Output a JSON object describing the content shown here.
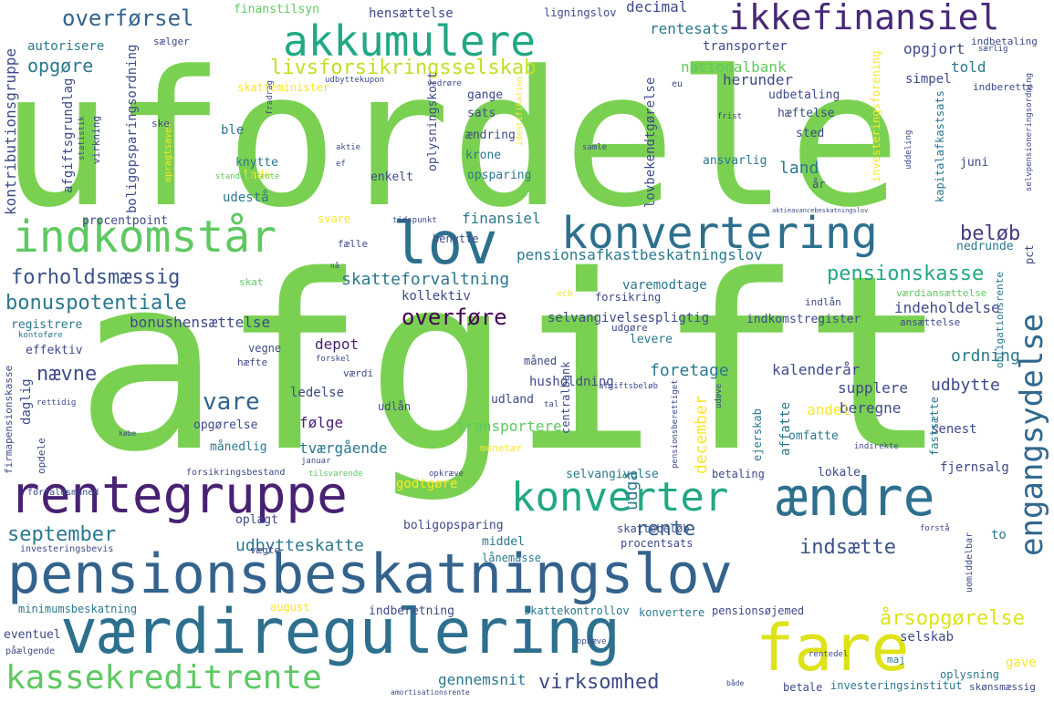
{
  "words": [
    {
      "text": "ufordele",
      "color": "#7ad151"
    },
    {
      "text": "afgift",
      "color": "#7ad151"
    },
    {
      "text": "pensionsbeskatningslov",
      "color": "#33638d"
    },
    {
      "text": "værdiregulering",
      "color": "#2d708e"
    },
    {
      "text": "rentegruppe",
      "color": "#482173"
    },
    {
      "text": "konverter",
      "color": "#22a884"
    },
    {
      "text": "ændre",
      "color": "#2d708e"
    },
    {
      "text": "fare",
      "color": "#dde318"
    },
    {
      "text": "indkomstår",
      "color": "#5ec962"
    },
    {
      "text": "lov",
      "color": "#2d708e"
    },
    {
      "text": "konvertering",
      "color": "#2d708e"
    },
    {
      "text": "akkumulere",
      "color": "#22a884"
    },
    {
      "text": "ikkefinansiel",
      "color": "#482878"
    },
    {
      "text": "kassekreditrente",
      "color": "#5ec962"
    },
    {
      "text": "livsforsikringsselskab",
      "color": "#c2df23"
    },
    {
      "text": "engangsydelse",
      "color": "#31688e"
    },
    {
      "text": "overførsel",
      "color": "#33638d"
    },
    {
      "text": "forholdsmæssig",
      "color": "#3b528b"
    },
    {
      "text": "bonuspotentiale",
      "color": "#2a788e"
    },
    {
      "text": "pensionskasse",
      "color": "#22a884"
    },
    {
      "text": "overføre",
      "color": "#440154"
    },
    {
      "text": "beløb",
      "color": "#443983"
    },
    {
      "text": "vare",
      "color": "#33638d"
    },
    {
      "text": "nævne",
      "color": "#3e4a89"
    },
    {
      "text": "september",
      "color": "#2a788e"
    },
    {
      "text": "rente",
      "color": "#33638d"
    },
    {
      "text": "indsætte",
      "color": "#3b528b"
    },
    {
      "text": "virksomhed",
      "color": "#3e4a89"
    },
    {
      "text": "årsopgørelse",
      "color": "#dde318"
    },
    {
      "text": "opgøre",
      "color": "#2a788e"
    },
    {
      "text": "udbytteskatte",
      "color": "#2a788e"
    },
    {
      "text": "gennemsnit",
      "color": "#2a788e"
    },
    {
      "text": "foretage",
      "color": "#2a788e"
    },
    {
      "text": "ordning",
      "color": "#2a788e"
    },
    {
      "text": "udbytte",
      "color": "#3e4a89"
    },
    {
      "text": "depot",
      "color": "#482173"
    },
    {
      "text": "udgå",
      "color": "#2a788e"
    },
    {
      "text": "december",
      "color": "#fde725"
    },
    {
      "text": "hensættelse",
      "color": "#3e4a89"
    },
    {
      "text": "decimal",
      "color": "#3e4a89"
    },
    {
      "text": "rentesats",
      "color": "#2a788e"
    },
    {
      "text": "transporter",
      "color": "#3e4a89"
    },
    {
      "text": "opgjort",
      "color": "#3e4a89"
    },
    {
      "text": "nationalbank",
      "color": "#5ec962"
    },
    {
      "text": "told",
      "color": "#2a788e"
    },
    {
      "text": "herunder",
      "color": "#3e4a89"
    },
    {
      "text": "simpel",
      "color": "#3e4a89"
    },
    {
      "text": "kalenderår",
      "color": "#3e4a89"
    },
    {
      "text": "supplere",
      "color": "#3e4a89"
    },
    {
      "text": "beregne",
      "color": "#3e4a89"
    },
    {
      "text": "senest",
      "color": "#3e4a89"
    },
    {
      "text": "andel",
      "color": "#fde725"
    },
    {
      "text": "ledelse",
      "color": "#3e4a89"
    },
    {
      "text": "følge",
      "color": "#482173"
    },
    {
      "text": "tværgående",
      "color": "#2a788e"
    },
    {
      "text": "transportere",
      "color": "#5ec962"
    },
    {
      "text": "husholdning",
      "color": "#3e4a89"
    },
    {
      "text": "land",
      "color": "#2a788e"
    },
    {
      "text": "finansiel",
      "color": "#2a788e"
    },
    {
      "text": "pensionsafkastbeskatningslov",
      "color": "#2a788e"
    },
    {
      "text": "skatteforvaltning",
      "color": "#2a788e"
    },
    {
      "text": "varemodtage",
      "color": "#2a788e"
    },
    {
      "text": "kollektiv",
      "color": "#3e4a89"
    },
    {
      "text": "selvangivelsespligtig",
      "color": "#3e4a89"
    },
    {
      "text": "indeholdelse",
      "color": "#3e4a89"
    },
    {
      "text": "indkomstregister",
      "color": "#3e4a89"
    },
    {
      "text": "bonushensættelse",
      "color": "#3e4a89"
    },
    {
      "text": "lovbekendtgørelse",
      "color": "#3e4a89"
    },
    {
      "text": "kontributionsgruppe",
      "color": "#3e4a89"
    },
    {
      "text": "boligopsparingsordning",
      "color": "#3e4a89"
    },
    {
      "text": "afgiftsgrundlag",
      "color": "#3e4a89"
    },
    {
      "text": "autorisere",
      "color": "#2a788e"
    },
    {
      "text": "sælger",
      "color": "#3e4a89"
    },
    {
      "text": "ble",
      "color": "#2a788e"
    },
    {
      "text": "knytte",
      "color": "#2a788e"
    },
    {
      "text": "lade",
      "color": "#fde725"
    },
    {
      "text": "udestå",
      "color": "#2a788e"
    },
    {
      "text": "procentpoint",
      "color": "#3e4a89"
    },
    {
      "text": "enkelt",
      "color": "#3e4a89"
    },
    {
      "text": "opsparing",
      "color": "#2a788e"
    },
    {
      "text": "krone",
      "color": "#2a788e"
    },
    {
      "text": "ændring",
      "color": "#3e4a89"
    },
    {
      "text": "oplysningskort",
      "color": "#3e4a89"
    },
    {
      "text": "sats",
      "color": "#3e4a89"
    },
    {
      "text": "gange",
      "color": "#3e4a89"
    },
    {
      "text": "udbetaling",
      "color": "#3e4a89"
    },
    {
      "text": "hæftelse",
      "color": "#3e4a89"
    },
    {
      "text": "sted",
      "color": "#3e4a89"
    },
    {
      "text": "ansvarlig",
      "color": "#2a788e"
    },
    {
      "text": "juni",
      "color": "#3e4a89"
    },
    {
      "text": "nedrunde",
      "color": "#2a788e"
    },
    {
      "text": "benytte",
      "color": "#3e4a89"
    },
    {
      "text": "fælle",
      "color": "#3e4a89"
    },
    {
      "text": "effektiv",
      "color": "#3e4a89"
    },
    {
      "text": "vegne",
      "color": "#3e4a89"
    },
    {
      "text": "måned",
      "color": "#3e4a89"
    },
    {
      "text": "levere",
      "color": "#2a788e"
    },
    {
      "text": "udgøre",
      "color": "#3e4a89"
    },
    {
      "text": "forsikring",
      "color": "#3e4a89"
    },
    {
      "text": "udland",
      "color": "#3e4a89"
    },
    {
      "text": "udlån",
      "color": "#3e4a89"
    },
    {
      "text": "daglig",
      "color": "#3e4a89"
    },
    {
      "text": "opgørelse",
      "color": "#3e4a89"
    },
    {
      "text": "månedlig",
      "color": "#2a788e"
    },
    {
      "text": "fastsætte",
      "color": "#2a788e"
    },
    {
      "text": "omfatte",
      "color": "#2a788e"
    },
    {
      "text": "affatte",
      "color": "#2a788e"
    },
    {
      "text": "ejerskab",
      "color": "#2a788e"
    },
    {
      "text": "centralbank",
      "color": "#3e4a89"
    },
    {
      "text": "betaling",
      "color": "#3e4a89"
    },
    {
      "text": "lokale",
      "color": "#3e4a89"
    },
    {
      "text": "fjernsalg",
      "color": "#3e4a89"
    },
    {
      "text": "godtgøre",
      "color": "#fde725"
    },
    {
      "text": "selvangivelse",
      "color": "#2a788e"
    },
    {
      "text": "oplagt",
      "color": "#3e4a89"
    },
    {
      "text": "boligopsparing",
      "color": "#3e4a89"
    },
    {
      "text": "skattebeløb",
      "color": "#3e4a89"
    },
    {
      "text": "procentsats",
      "color": "#3e4a89"
    },
    {
      "text": "middel",
      "color": "#2a788e"
    },
    {
      "text": "lånemasse",
      "color": "#2a788e"
    },
    {
      "text": "vægte",
      "color": "#3e4a89"
    },
    {
      "text": "to",
      "color": "#2a788e"
    },
    {
      "text": "selskab",
      "color": "#3e4a89"
    },
    {
      "text": "gave",
      "color": "#fde725"
    },
    {
      "text": "oplysning",
      "color": "#2a788e"
    },
    {
      "text": "skønsmæssig",
      "color": "#3e4a89"
    },
    {
      "text": "investeringsinstitut",
      "color": "#2a788e"
    },
    {
      "text": "betale",
      "color": "#3e4a89"
    },
    {
      "text": "maj",
      "color": "#2a788e"
    },
    {
      "text": "pensionsøjemed",
      "color": "#3e4a89"
    },
    {
      "text": "konvertere",
      "color": "#2a788e"
    },
    {
      "text": "skattekontrollov",
      "color": "#2a788e"
    },
    {
      "text": "indberetning",
      "color": "#3e4a89"
    },
    {
      "text": "august",
      "color": "#fde725"
    },
    {
      "text": "minimumsbeskatning",
      "color": "#2a788e"
    },
    {
      "text": "eventuel",
      "color": "#3e4a89"
    },
    {
      "text": "påælgende",
      "color": "#3e4a89"
    },
    {
      "text": "investeringsbevis",
      "color": "#3e4a89"
    },
    {
      "text": "forfaldsmåned",
      "color": "#3e4a89"
    },
    {
      "text": "forsikringsbestand",
      "color": "#3e4a89"
    },
    {
      "text": "opdele",
      "color": "#3e4a89"
    },
    {
      "text": "firmapensionskasse",
      "color": "#3e4a89"
    },
    {
      "text": "registrere",
      "color": "#2a788e"
    },
    {
      "text": "kontoføre",
      "color": "#2a788e"
    },
    {
      "text": "finanstilsyn",
      "color": "#5ec962"
    },
    {
      "text": "ligningslov",
      "color": "#3e4a89"
    },
    {
      "text": "indbetaling",
      "color": "#3e4a89"
    },
    {
      "text": "indberette",
      "color": "#3e4a89"
    },
    {
      "text": "skatteminister",
      "color": "#fde725"
    },
    {
      "text": "udbyttekupon",
      "color": "#3e4a89"
    },
    {
      "text": "identifikation",
      "color": "#fde725"
    },
    {
      "text": "investeringsforening",
      "color": "#fde725"
    },
    {
      "text": "kapitalafkastsats",
      "color": "#2a788e"
    },
    {
      "text": "obligationsrente",
      "color": "#2a788e"
    },
    {
      "text": "selvpensioneringsordning",
      "color": "#3e4a89"
    },
    {
      "text": "statistik",
      "color": "#3e4a89"
    },
    {
      "text": "virkning",
      "color": "#3e4a89"
    },
    {
      "text": "opragtsaver",
      "color": "#fde725"
    },
    {
      "text": "standardrente",
      "color": "#5ec962"
    },
    {
      "text": "frist",
      "color": "#3e4a89"
    },
    {
      "text": "samle",
      "color": "#3e4a89"
    },
    {
      "text": "aktie",
      "color": "#3e4a89"
    },
    {
      "text": "år",
      "color": "#3e4a89"
    },
    {
      "text": "skat",
      "color": "#5ec962"
    },
    {
      "text": "nå",
      "color": "#3e4a89"
    },
    {
      "text": "svare",
      "color": "#fde725"
    },
    {
      "text": "tidspunkt",
      "color": "#3e4a89"
    },
    {
      "text": "ecb",
      "color": "#fde725"
    },
    {
      "text": "pct",
      "color": "#3e4a89"
    },
    {
      "text": "værdiansættelse",
      "color": "#5ec962"
    },
    {
      "text": "ansættelse",
      "color": "#3e4a89"
    },
    {
      "text": "indlån",
      "color": "#3e4a89"
    },
    {
      "text": "hæfte",
      "color": "#3e4a89"
    },
    {
      "text": "værdi",
      "color": "#3e4a89"
    },
    {
      "text": "forskel",
      "color": "#3e4a89"
    },
    {
      "text": "afgiftsbeløb",
      "color": "#3e4a89"
    },
    {
      "text": "tal",
      "color": "#3e4a89"
    },
    {
      "text": "monetær",
      "color": "#fde725"
    },
    {
      "text": "pensionsberettiget",
      "color": "#3e4a89"
    },
    {
      "text": "udøve",
      "color": "#3e4a89"
    },
    {
      "text": "indirekte",
      "color": "#3e4a89"
    },
    {
      "text": "rettidig",
      "color": "#3e4a89"
    },
    {
      "text": "købe",
      "color": "#3e4a89"
    },
    {
      "text": "januar",
      "color": "#3e4a89"
    },
    {
      "text": "tilsvarende",
      "color": "#5ec962"
    },
    {
      "text": "opkræve",
      "color": "#3e4a89"
    },
    {
      "text": "forstå",
      "color": "#3e4a89"
    },
    {
      "text": "uomiddelbar",
      "color": "#3e4a89"
    },
    {
      "text": "rentedel",
      "color": "#3e4a89"
    },
    {
      "text": "ophæve",
      "color": "#3e4a89"
    },
    {
      "text": "både",
      "color": "#3e4a89"
    },
    {
      "text": "amortisationsrente",
      "color": "#3e4a89"
    },
    {
      "text": "uddeling",
      "color": "#3e4a89"
    },
    {
      "text": "vedrøre",
      "color": "#3e4a89"
    },
    {
      "text": "særlig",
      "color": "#3e4a89"
    },
    {
      "text": "eu",
      "color": "#3e4a89"
    },
    {
      "text": "ske",
      "color": "#3e4a89"
    },
    {
      "text": "fradrag",
      "color": "#3e4a89"
    },
    {
      "text": "ef",
      "color": "#3e4a89"
    },
    {
      "text": "aktieavancebeskatningslov",
      "color": "#3e4a89"
    }
  ]
}
